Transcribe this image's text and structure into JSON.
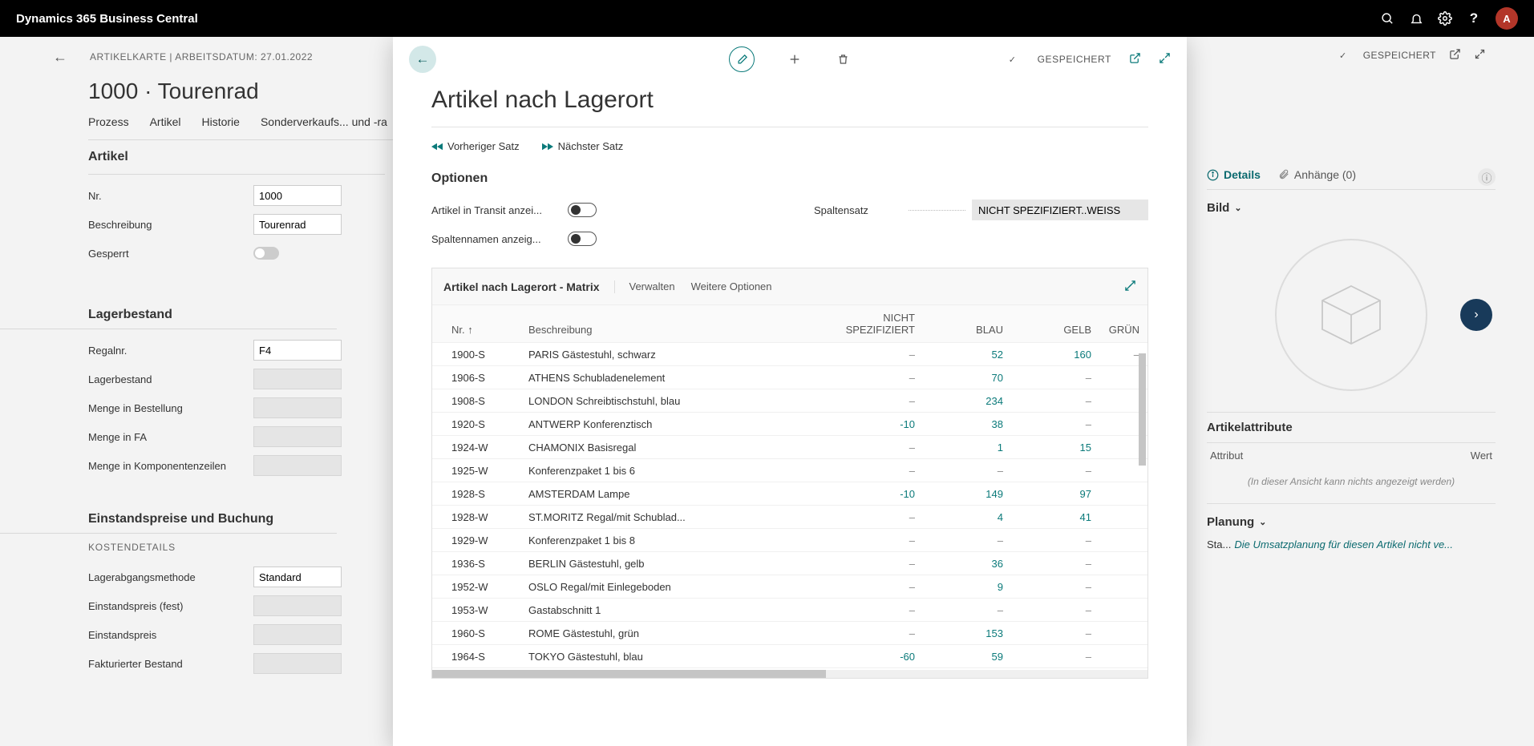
{
  "app_name": "Dynamics 365 Business Central",
  "avatar_initial": "A",
  "bg": {
    "breadcrumb": "ARTIKELKARTE | ARBEITSDATUM: 27.01.2022",
    "title": "1000 · Tourenrad",
    "saved": "GESPEICHERT",
    "tabs": {
      "prozess": "Prozess",
      "artikel": "Artikel",
      "historie": "Historie",
      "sonder": "Sonderverkaufs... und -ra"
    },
    "sec_artikel": "Artikel",
    "fields_artikel": {
      "nr_lbl": "Nr.",
      "nr_val": "1000",
      "besch_lbl": "Beschreibung",
      "besch_val": "Tourenrad",
      "gesperrt_lbl": "Gesperrt"
    },
    "sec_lager": "Lagerbestand",
    "fields_lager": {
      "regal_lbl": "Regalnr.",
      "regal_val": "F4",
      "lager_lbl": "Lagerbestand",
      "best_lbl": "Menge in Bestellung",
      "fa_lbl": "Menge in FA",
      "komp_lbl": "Menge in Komponentenzeilen"
    },
    "sec_einstand": "Einstandspreise und Buchung",
    "sub_kosten": "KOSTENDETAILS",
    "fields_einstand": {
      "method_lbl": "Lagerabgangsmethode",
      "method_val": "Standard",
      "fest_lbl": "Einstandspreis (fest)",
      "preis_lbl": "Einstandspreis",
      "fakt_lbl": "Fakturierter Bestand"
    }
  },
  "rp": {
    "details": "Details",
    "anhange": "Anhänge (0)",
    "bild": "Bild",
    "artikelattribute": "Artikelattribute",
    "attr": "Attribut",
    "wert": "Wert",
    "empty": "(In dieser Ansicht kann nichts angezeigt werden)",
    "planung": "Planung",
    "sta": "Sta...",
    "plan_text": "Die Umsatzplanung für diesen Artikel nicht ve..."
  },
  "modal": {
    "title": "Artikel nach Lagerort",
    "saved": "GESPEICHERT",
    "prev": "Vorheriger Satz",
    "next": "Nächster Satz",
    "opt_heading": "Optionen",
    "opt_transit": "Artikel in Transit anzei...",
    "opt_spalten": "Spaltennamen anzeig...",
    "opt_spaltensatz_lbl": "Spaltensatz",
    "opt_spaltensatz_val": "NICHT SPEZIFIZIERT..WEISS",
    "matrix_title": "Artikel nach Lagerort - Matrix",
    "verwalten": "Verwalten",
    "weitere": "Weitere Optionen",
    "th_nr": "Nr. ↑",
    "th_besch": "Beschreibung",
    "th_ns1": "NICHT",
    "th_ns2": "SPEZIFIZIERT",
    "th_blau": "BLAU",
    "th_gelb": "GELB",
    "th_grun": "GRÜN",
    "rows": [
      {
        "nr": "1900-S",
        "desc": "PARIS Gästestuhl, schwarz",
        "ns": "–",
        "blau": "52",
        "gelb": "160",
        "grun": "–"
      },
      {
        "nr": "1906-S",
        "desc": "ATHENS Schubladenelement",
        "ns": "–",
        "blau": "70",
        "gelb": "–",
        "grun": ""
      },
      {
        "nr": "1908-S",
        "desc": "LONDON Schreibtischstuhl, blau",
        "ns": "–",
        "blau": "234",
        "gelb": "–",
        "grun": ""
      },
      {
        "nr": "1920-S",
        "desc": "ANTWERP Konferenztisch",
        "ns": "-10",
        "blau": "38",
        "gelb": "–",
        "grun": ""
      },
      {
        "nr": "1924-W",
        "desc": "CHAMONIX Basisregal",
        "ns": "–",
        "blau": "1",
        "gelb": "15",
        "grun": ""
      },
      {
        "nr": "1925-W",
        "desc": "Konferenzpaket 1 bis 6",
        "ns": "–",
        "blau": "–",
        "gelb": "–",
        "grun": ""
      },
      {
        "nr": "1928-S",
        "desc": "AMSTERDAM Lampe",
        "ns": "-10",
        "blau": "149",
        "gelb": "97",
        "grun": ""
      },
      {
        "nr": "1928-W",
        "desc": "ST.MORITZ Regal/mit Schublad...",
        "ns": "–",
        "blau": "4",
        "gelb": "41",
        "grun": ""
      },
      {
        "nr": "1929-W",
        "desc": "Konferenzpaket 1 bis 8",
        "ns": "–",
        "blau": "–",
        "gelb": "–",
        "grun": ""
      },
      {
        "nr": "1936-S",
        "desc": "BERLIN Gästestuhl, gelb",
        "ns": "–",
        "blau": "36",
        "gelb": "–",
        "grun": ""
      },
      {
        "nr": "1952-W",
        "desc": "OSLO Regal/mit Einlegeboden",
        "ns": "–",
        "blau": "9",
        "gelb": "–",
        "grun": ""
      },
      {
        "nr": "1953-W",
        "desc": "Gastabschnitt 1",
        "ns": "–",
        "blau": "–",
        "gelb": "–",
        "grun": ""
      },
      {
        "nr": "1960-S",
        "desc": "ROME Gästestuhl, grün",
        "ns": "–",
        "blau": "153",
        "gelb": "–",
        "grun": ""
      },
      {
        "nr": "1964-S",
        "desc": "TOKYO Gästestuhl, blau",
        "ns": "-60",
        "blau": "59",
        "gelb": "–",
        "grun": ""
      }
    ]
  }
}
